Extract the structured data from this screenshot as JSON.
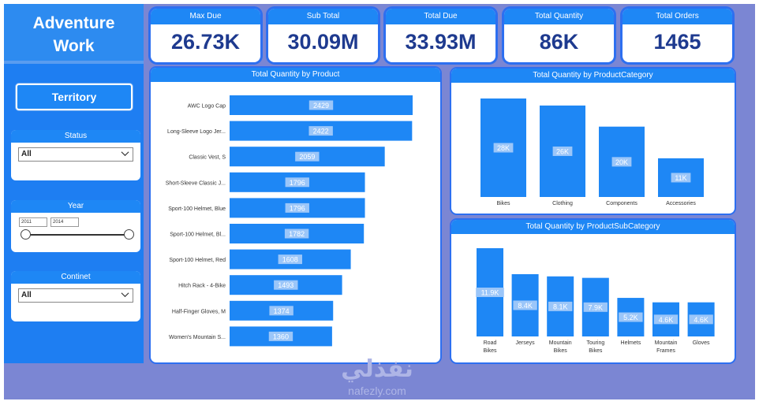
{
  "brand": {
    "line1": "Adventure",
    "line2": "Work"
  },
  "kpis": [
    {
      "title": "Max Due",
      "value": "26.73K"
    },
    {
      "title": "Sub Total",
      "value": "30.09M"
    },
    {
      "title": "Total Due",
      "value": "33.93M"
    },
    {
      "title": "Total Quantity",
      "value": "86K"
    },
    {
      "title": "Total Orders",
      "value": "1465"
    }
  ],
  "filters": {
    "territory_label": "Territory",
    "status": {
      "title": "Status",
      "value": "All"
    },
    "year": {
      "title": "Year",
      "from": "2011",
      "to": "2014"
    },
    "continent": {
      "title": "Continet",
      "value": "All"
    }
  },
  "colors": {
    "bar": "#1e87f5",
    "title_bar": "#1e87f5",
    "kpi_value": "#1e3a8f",
    "canvas": "#7b86d3",
    "sidebar": "#1e7ef2"
  },
  "chart_data": [
    {
      "type": "bar",
      "orientation": "horizontal",
      "title": "Total Quantity by Product",
      "categories": [
        "AWC Logo Cap",
        "Long-Sleeve Logo Jer...",
        "Classic Vest, S",
        "Short-Sleeve Classic J...",
        "Sport-100 Helmet, Blue",
        "Sport-100 Helmet, Bl...",
        "Sport-100 Helmet, Red",
        "Hitch Rack - 4-Bike",
        "Half-Finger Gloves, M",
        "Women's Mountain S..."
      ],
      "values": [
        2429,
        2422,
        2059,
        1796,
        1796,
        1782,
        1608,
        1493,
        1374,
        1360
      ],
      "labels": [
        "2429",
        "2422",
        "2059",
        "1796",
        "1796",
        "1782",
        "1608",
        "1493",
        "1374",
        "1360"
      ]
    },
    {
      "type": "bar",
      "title": "Total Quantity by ProductCategory",
      "categories": [
        "Bikes",
        "Clothing",
        "Components",
        "Accessories"
      ],
      "values": [
        28000,
        26000,
        20000,
        11000
      ],
      "labels": [
        "28K",
        "26K",
        "20K",
        "11K"
      ]
    },
    {
      "type": "bar",
      "title": "Total Quantity by ProductSubCategory",
      "categories": [
        "Road Bikes",
        "Jerseys",
        "Mountain Bikes",
        "Touring Bikes",
        "Helmets",
        "Mountain Frames",
        "Gloves"
      ],
      "values": [
        11900,
        8400,
        8100,
        7900,
        5200,
        4600,
        4600
      ],
      "labels": [
        "11.9K",
        "8.4K",
        "8.1K",
        "7.9K",
        "5.2K",
        "4.6K",
        "4.6K"
      ]
    }
  ],
  "watermark": {
    "arabic": "نفذلي",
    "latin": "nafezly.com"
  }
}
